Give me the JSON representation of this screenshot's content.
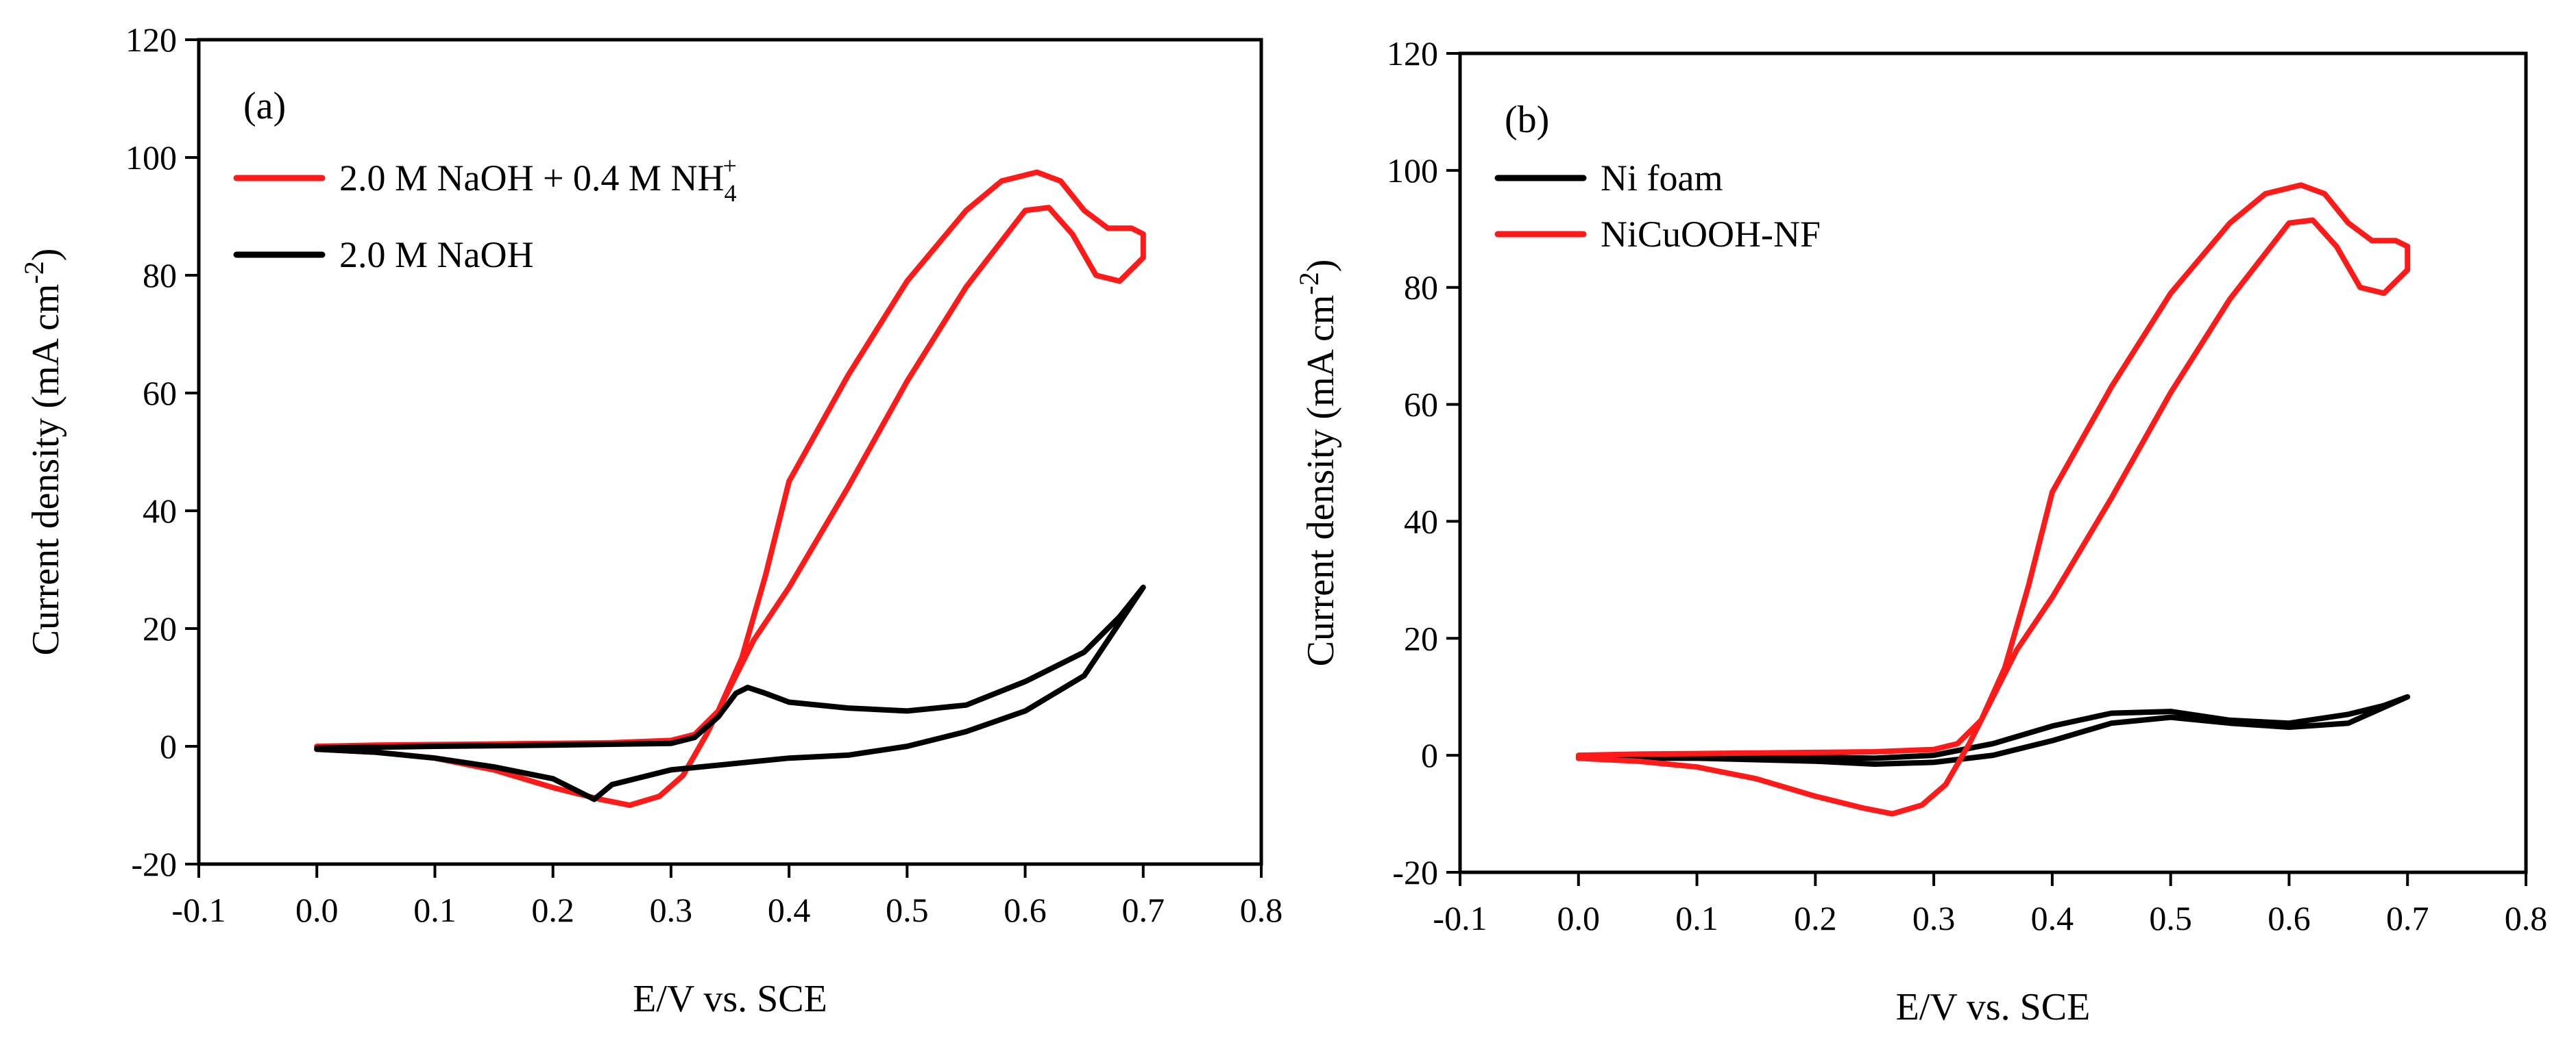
{
  "chart_data": [
    {
      "type": "line",
      "panel_label": "(a)",
      "xlabel": "E/V vs. SCE",
      "ylabel": "Current density (mA cm",
      "ylabel_sup": "-2",
      "ylabel_end": ")",
      "xlim": [
        -0.1,
        0.8
      ],
      "ylim": [
        -20,
        120
      ],
      "xticks": [
        -0.1,
        0.0,
        0.1,
        0.2,
        0.3,
        0.4,
        0.5,
        0.6,
        0.7,
        0.8
      ],
      "xtick_labels": [
        "-0.1",
        "0.0",
        "0.1",
        "0.2",
        "0.3",
        "0.4",
        "0.5",
        "0.6",
        "0.7",
        "0.8"
      ],
      "yticks": [
        -20,
        0,
        20,
        40,
        60,
        80,
        100,
        120
      ],
      "ytick_labels": [
        "-20",
        "0",
        "20",
        "40",
        "60",
        "80",
        "100",
        "120"
      ],
      "grid": false,
      "legend_position": "top-left",
      "series": [
        {
          "name": "2.0 M NaOH + 0.4 M NH",
          "name_sub": "4",
          "name_sup": "+",
          "color": "#ff1a1a",
          "x": [
            0.0,
            0.05,
            0.1,
            0.15,
            0.2,
            0.24,
            0.265,
            0.29,
            0.31,
            0.33,
            0.35,
            0.37,
            0.4,
            0.45,
            0.5,
            0.55,
            0.6,
            0.62,
            0.64,
            0.66,
            0.68,
            0.7,
            0.7,
            0.69,
            0.67,
            0.65,
            0.63,
            0.61,
            0.58,
            0.55,
            0.5,
            0.45,
            0.4,
            0.38,
            0.36,
            0.34,
            0.32,
            0.3,
            0.25,
            0.2,
            0.15,
            0.1,
            0.05,
            0.0
          ],
          "y": [
            -0.5,
            -1,
            -2,
            -4,
            -7,
            -9,
            -10,
            -8.5,
            -5,
            2,
            10,
            18,
            27,
            44,
            62,
            78,
            91,
            91.5,
            87,
            80,
            79,
            83,
            87,
            88,
            88,
            91,
            96,
            97.5,
            96,
            91,
            79,
            63,
            45,
            29,
            15,
            6,
            2,
            1,
            0.6,
            0.5,
            0.4,
            0.3,
            0.2,
            0
          ]
        },
        {
          "name": "2.0 M NaOH",
          "color": "#000000",
          "x": [
            0.0,
            0.05,
            0.1,
            0.15,
            0.2,
            0.225,
            0.235,
            0.25,
            0.3,
            0.35,
            0.4,
            0.45,
            0.5,
            0.55,
            0.6,
            0.65,
            0.7,
            0.68,
            0.65,
            0.6,
            0.55,
            0.5,
            0.45,
            0.4,
            0.38,
            0.365,
            0.355,
            0.34,
            0.32,
            0.3,
            0.2,
            0.1,
            0.0
          ],
          "y": [
            -0.5,
            -1,
            -2,
            -3.5,
            -5.5,
            -8,
            -9,
            -6.5,
            -4,
            -3,
            -2,
            -1.5,
            0,
            2.5,
            6,
            12,
            27,
            22,
            16,
            11,
            7,
            6,
            6.5,
            7.5,
            9,
            10,
            9,
            5,
            1.5,
            0.5,
            0.2,
            0,
            -0.3
          ]
        }
      ]
    },
    {
      "type": "line",
      "panel_label": "(b)",
      "xlabel": "E/V vs. SCE",
      "ylabel": "Current density (mA cm",
      "ylabel_sup": "-2",
      "ylabel_end": ")",
      "xlim": [
        -0.1,
        0.8
      ],
      "ylim": [
        -20,
        120
      ],
      "xticks": [
        -0.1,
        0.0,
        0.1,
        0.2,
        0.3,
        0.4,
        0.5,
        0.6,
        0.7,
        0.8
      ],
      "xtick_labels": [
        "-0.1",
        "0.0",
        "0.1",
        "0.2",
        "0.3",
        "0.4",
        "0.5",
        "0.6",
        "0.7",
        "0.8"
      ],
      "yticks": [
        -20,
        0,
        20,
        40,
        60,
        80,
        100,
        120
      ],
      "ytick_labels": [
        "-20",
        "0",
        "20",
        "40",
        "60",
        "80",
        "100",
        "120"
      ],
      "grid": false,
      "legend_position": "top-left",
      "series": [
        {
          "name": "Ni foam",
          "color": "#000000",
          "x": [
            0.0,
            0.1,
            0.2,
            0.25,
            0.3,
            0.35,
            0.4,
            0.45,
            0.5,
            0.55,
            0.6,
            0.65,
            0.7,
            0.68,
            0.65,
            0.6,
            0.55,
            0.5,
            0.45,
            0.4,
            0.35,
            0.3,
            0.25,
            0.2,
            0.1,
            0.0
          ],
          "y": [
            -0.5,
            -0.5,
            -1,
            -1.5,
            -1.2,
            0,
            2.5,
            5.5,
            6.5,
            5.5,
            4.8,
            5.5,
            10,
            8.5,
            7,
            5.5,
            6,
            7.5,
            7.2,
            5,
            2,
            0,
            -0.5,
            -0.3,
            -0.2,
            -0.3
          ]
        },
        {
          "name": "NiCuOOH-NF",
          "color": "#ff1a1a",
          "x": [
            0.0,
            0.05,
            0.1,
            0.15,
            0.2,
            0.24,
            0.265,
            0.29,
            0.31,
            0.33,
            0.35,
            0.37,
            0.4,
            0.45,
            0.5,
            0.55,
            0.6,
            0.62,
            0.64,
            0.66,
            0.68,
            0.7,
            0.7,
            0.69,
            0.67,
            0.65,
            0.63,
            0.61,
            0.58,
            0.55,
            0.5,
            0.45,
            0.4,
            0.38,
            0.36,
            0.34,
            0.32,
            0.3,
            0.25,
            0.2,
            0.15,
            0.1,
            0.05,
            0.0
          ],
          "y": [
            -0.5,
            -1,
            -2,
            -4,
            -7,
            -9,
            -10,
            -8.5,
            -5,
            2,
            10,
            18,
            27,
            44,
            62,
            78,
            91,
            91.5,
            87,
            80,
            79,
            83,
            87,
            88,
            88,
            91,
            96,
            97.5,
            96,
            91,
            79,
            63,
            45,
            29,
            15,
            6,
            2,
            1,
            0.6,
            0.5,
            0.4,
            0.3,
            0.2,
            0
          ]
        }
      ]
    }
  ]
}
